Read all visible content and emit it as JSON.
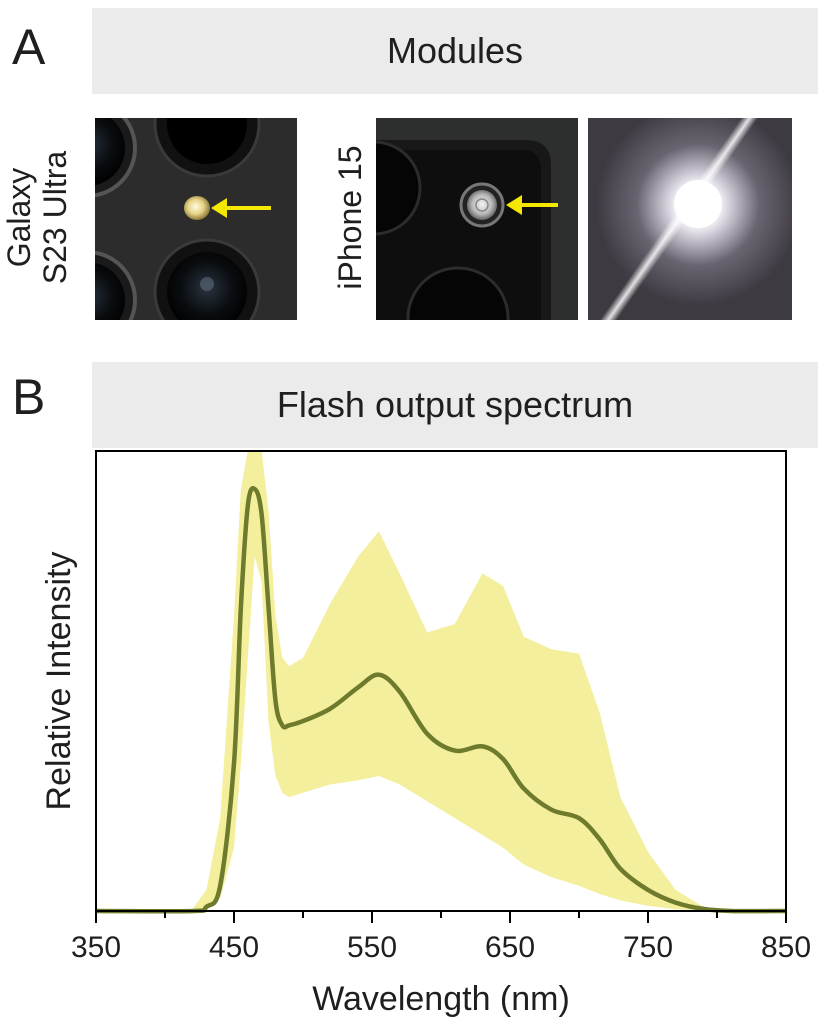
{
  "panel_a": {
    "letter": "A",
    "title": "Modules",
    "label_galaxy_line1": "Galaxy",
    "label_galaxy_line2": "S23 Ultra",
    "label_iphone": "iPhone 15",
    "arrow_color": "#f5e800"
  },
  "panel_b": {
    "letter": "B",
    "title": "Flash output spectrum"
  },
  "chart_data": {
    "type": "line",
    "title": "Flash output spectrum",
    "xlabel": "Wavelength (nm)",
    "ylabel": "Relative Intensity",
    "xlim": [
      350,
      850
    ],
    "ylim": [
      0,
      1.09
    ],
    "xticks": [
      350,
      450,
      550,
      650,
      750,
      850
    ],
    "xticks_minor": [
      400,
      500,
      600,
      700,
      800
    ],
    "grid": false,
    "colors": {
      "line": "#6e7a2c",
      "band": "#f4ef9c"
    },
    "series": [
      {
        "x": [
          350,
          420,
          430,
          440,
          450,
          455,
          460,
          465,
          470,
          475,
          480,
          485,
          490,
          500,
          520,
          540,
          555,
          570,
          590,
          610,
          630,
          645,
          660,
          680,
          700,
          715,
          730,
          750,
          770,
          790,
          810,
          850
        ],
        "values": [
          0,
          0,
          0.01,
          0.06,
          0.35,
          0.72,
          0.96,
          1.0,
          0.94,
          0.72,
          0.5,
          0.44,
          0.44,
          0.45,
          0.48,
          0.53,
          0.56,
          0.52,
          0.42,
          0.38,
          0.39,
          0.36,
          0.29,
          0.24,
          0.22,
          0.17,
          0.1,
          0.05,
          0.02,
          0.005,
          0,
          0
        ]
      }
    ],
    "band": {
      "x": [
        350,
        420,
        430,
        440,
        450,
        455,
        460,
        465,
        470,
        475,
        480,
        485,
        490,
        500,
        520,
        540,
        555,
        570,
        590,
        610,
        630,
        645,
        660,
        680,
        700,
        715,
        730,
        750,
        770,
        790,
        810,
        850
      ],
      "upper": [
        0,
        0.005,
        0.05,
        0.22,
        0.7,
        1.0,
        1.09,
        1.09,
        1.09,
        0.95,
        0.7,
        0.6,
        0.58,
        0.6,
        0.73,
        0.84,
        0.9,
        0.8,
        0.66,
        0.68,
        0.8,
        0.77,
        0.65,
        0.62,
        0.61,
        0.47,
        0.27,
        0.14,
        0.05,
        0.01,
        0.002,
        0
      ],
      "lower": [
        0,
        0,
        0.003,
        0.03,
        0.15,
        0.35,
        0.6,
        0.84,
        0.78,
        0.45,
        0.32,
        0.28,
        0.27,
        0.28,
        0.3,
        0.31,
        0.32,
        0.3,
        0.26,
        0.22,
        0.18,
        0.15,
        0.11,
        0.08,
        0.06,
        0.04,
        0.025,
        0.012,
        0.004,
        0.001,
        0,
        0
      ]
    }
  }
}
